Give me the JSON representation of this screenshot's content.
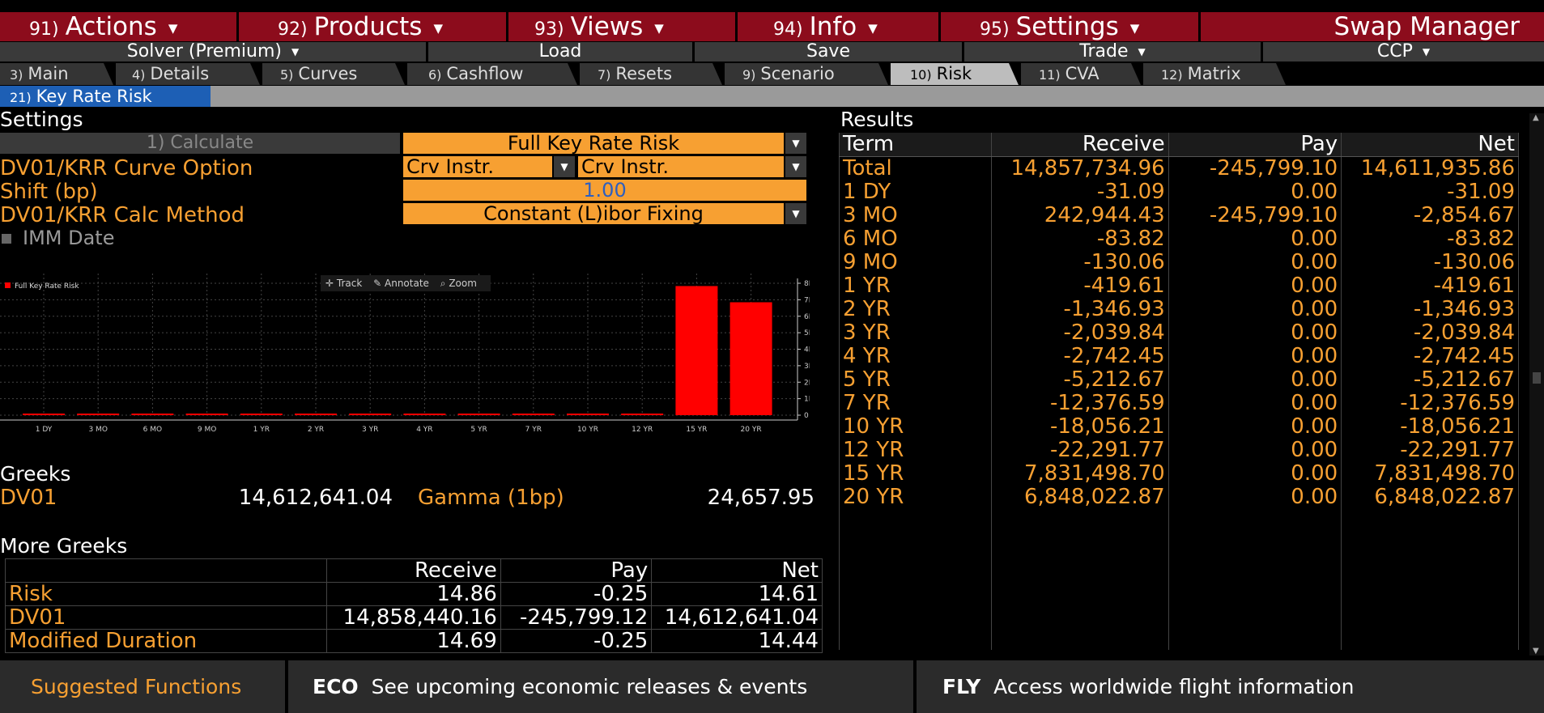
{
  "menus": [
    {
      "num": "91)",
      "label": "Actions"
    },
    {
      "num": "92)",
      "label": "Products"
    },
    {
      "num": "93)",
      "label": "Views"
    },
    {
      "num": "94)",
      "label": "Info"
    },
    {
      "num": "95)",
      "label": "Settings"
    }
  ],
  "app_title": "Swap Manager",
  "subbar": {
    "solver": "Solver (Premium)",
    "load": "Load",
    "save": "Save",
    "trade": "Trade",
    "ccp": "CCP"
  },
  "tabs": [
    {
      "num": "3)",
      "label": "Main"
    },
    {
      "num": "4)",
      "label": "Details"
    },
    {
      "num": "5)",
      "label": "Curves"
    },
    {
      "num": "6)",
      "label": "Cashflow"
    },
    {
      "num": "7)",
      "label": "Resets"
    },
    {
      "num": "9)",
      "label": "Scenario"
    },
    {
      "num": "10)",
      "label": "Risk"
    },
    {
      "num": "11)",
      "label": "CVA"
    },
    {
      "num": "12)",
      "label": "Matrix"
    }
  ],
  "subtab": {
    "num": "21)",
    "label": "Key Rate Risk"
  },
  "settings": {
    "title": "Settings",
    "calculate_label": "1) Calculate",
    "risk_type": "Full Key Rate Risk",
    "curve_option_label": "DV01/KRR Curve Option",
    "curve_option_1": "Crv Instr.",
    "curve_option_2": "Crv Instr.",
    "shift_label": "Shift (bp)",
    "shift_value": "1.00",
    "calc_method_label": "DV01/KRR Calc Method",
    "calc_method_value": "Constant (L)ibor Fixing",
    "imm_label": "IMM Date"
  },
  "chart_toolbar": {
    "track": "Track",
    "annotate": "Annotate",
    "zoom": "Zoom"
  },
  "chart_data": {
    "type": "bar",
    "categories": [
      "1 DY",
      "3 MO",
      "6 MO",
      "9 MO",
      "1 YR",
      "2 YR",
      "3 YR",
      "4 YR",
      "5 YR",
      "7 YR",
      "10 YR",
      "12 YR",
      "15 YR",
      "20 YR"
    ],
    "series": [
      {
        "name": "Full Key Rate Risk",
        "values": [
          -31.09,
          -2854.67,
          -83.82,
          -130.06,
          -419.61,
          -1346.93,
          -2039.84,
          -2742.45,
          -5212.67,
          -12376.59,
          -18056.21,
          -22291.77,
          7831498.7,
          6848022.87
        ]
      }
    ],
    "yticks": [
      "8M",
      "7M",
      "6M",
      "5M",
      "4M",
      "3M",
      "2M",
      "1M",
      "0"
    ],
    "ylim": [
      0,
      8000000
    ],
    "color": "#ff0000",
    "grid": true,
    "legend": "top-left"
  },
  "greeks": {
    "title": "Greeks",
    "dv01_label": "DV01",
    "dv01_value": "14,612,641.04",
    "gamma_label": "Gamma (1bp)",
    "gamma_value": "24,657.95"
  },
  "more_greeks": {
    "title": "More Greeks",
    "headers": [
      "",
      "Receive",
      "Pay",
      "Net"
    ],
    "rows": [
      [
        "Risk",
        "14.86",
        "-0.25",
        "14.61"
      ],
      [
        "DV01",
        "14,858,440.16",
        "-245,799.12",
        "14,612,641.04"
      ],
      [
        "Modified Duration",
        "14.69",
        "-0.25",
        "14.44"
      ]
    ]
  },
  "results": {
    "title": "Results",
    "headers": [
      "Term",
      "Receive",
      "Pay",
      "Net"
    ],
    "rows": [
      [
        "Total",
        "14,857,734.96",
        "-245,799.10",
        "14,611,935.86"
      ],
      [
        "1 DY",
        "-31.09",
        "0.00",
        "-31.09"
      ],
      [
        "3 MO",
        "242,944.43",
        "-245,799.10",
        "-2,854.67"
      ],
      [
        "6 MO",
        "-83.82",
        "0.00",
        "-83.82"
      ],
      [
        "9 MO",
        "-130.06",
        "0.00",
        "-130.06"
      ],
      [
        "1 YR",
        "-419.61",
        "0.00",
        "-419.61"
      ],
      [
        "2 YR",
        "-1,346.93",
        "0.00",
        "-1,346.93"
      ],
      [
        "3 YR",
        "-2,039.84",
        "0.00",
        "-2,039.84"
      ],
      [
        "4 YR",
        "-2,742.45",
        "0.00",
        "-2,742.45"
      ],
      [
        "5 YR",
        "-5,212.67",
        "0.00",
        "-5,212.67"
      ],
      [
        "7 YR",
        "-12,376.59",
        "0.00",
        "-12,376.59"
      ],
      [
        "10 YR",
        "-18,056.21",
        "0.00",
        "-18,056.21"
      ],
      [
        "12 YR",
        "-22,291.77",
        "0.00",
        "-22,291.77"
      ],
      [
        "15 YR",
        "7,831,498.70",
        "0.00",
        "7,831,498.70"
      ],
      [
        "20 YR",
        "6,848,022.87",
        "0.00",
        "6,848,022.87"
      ]
    ]
  },
  "footer": {
    "suggested": "Suggested Functions",
    "eco_code": "ECO",
    "eco_text": "See upcoming economic releases & events",
    "fly_code": "FLY",
    "fly_text": "Access worldwide flight information"
  },
  "colors": {
    "accent": "#f7a032",
    "menu": "#8c0c1c",
    "tab_active": "#bdbdbd",
    "subtab": "#1d5fb5",
    "bar": "#ff0000"
  }
}
